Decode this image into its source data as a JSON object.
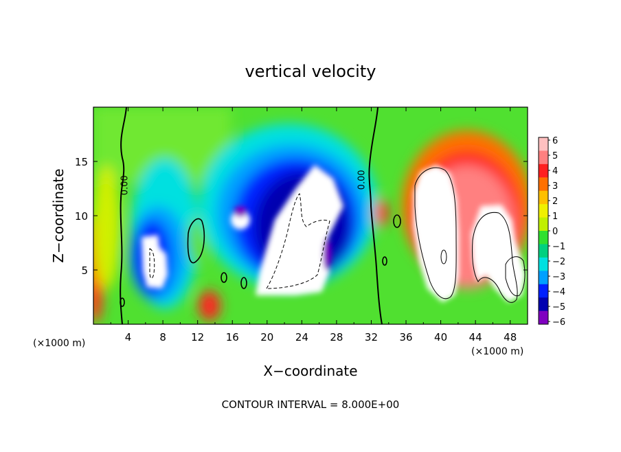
{
  "chart_data": {
    "type": "heatmap",
    "title": "vertical velocity",
    "xlabel": "X−coordinate",
    "ylabel": "Z−coordinate",
    "x_unit_left": "(×1000 m)",
    "x_unit_right": "(×1000 m)",
    "footer": "CONTOUR INTERVAL = 8.000E+00",
    "xlim": [
      0,
      50
    ],
    "ylim": [
      0,
      20
    ],
    "x_ticks": [
      "4",
      "8",
      "12",
      "16",
      "20",
      "24",
      "28",
      "32",
      "36",
      "40",
      "44",
      "48"
    ],
    "x_tick_values": [
      4,
      8,
      12,
      16,
      20,
      24,
      28,
      32,
      36,
      40,
      44,
      48
    ],
    "y_ticks": [
      "5",
      "10",
      "15"
    ],
    "y_tick_values": [
      5,
      10,
      15
    ],
    "zero_contour_labels": [
      "0.00",
      "0.00"
    ],
    "zero_contour_label_positions": [
      [
        3.9,
        12.8
      ],
      [
        31.2,
        13.3
      ]
    ],
    "colorbar": {
      "labels": [
        "6",
        "5",
        "4",
        "3",
        "2",
        "1",
        "0",
        "−1",
        "−2",
        "−3",
        "−4",
        "−5",
        "−6"
      ],
      "values": [
        6,
        5,
        4,
        3,
        2,
        1,
        0,
        -1,
        -2,
        -3,
        -4,
        -5,
        -6
      ],
      "colors": [
        "#ffc0c0",
        "#ff8080",
        "#ff2020",
        "#ff7000",
        "#ffc000",
        "#f0f000",
        "#c0f000",
        "#30e030",
        "#00d080",
        "#00e0e0",
        "#00a0ff",
        "#0020ff",
        "#0000b0",
        "#8000c0"
      ]
    },
    "grid": false
  }
}
